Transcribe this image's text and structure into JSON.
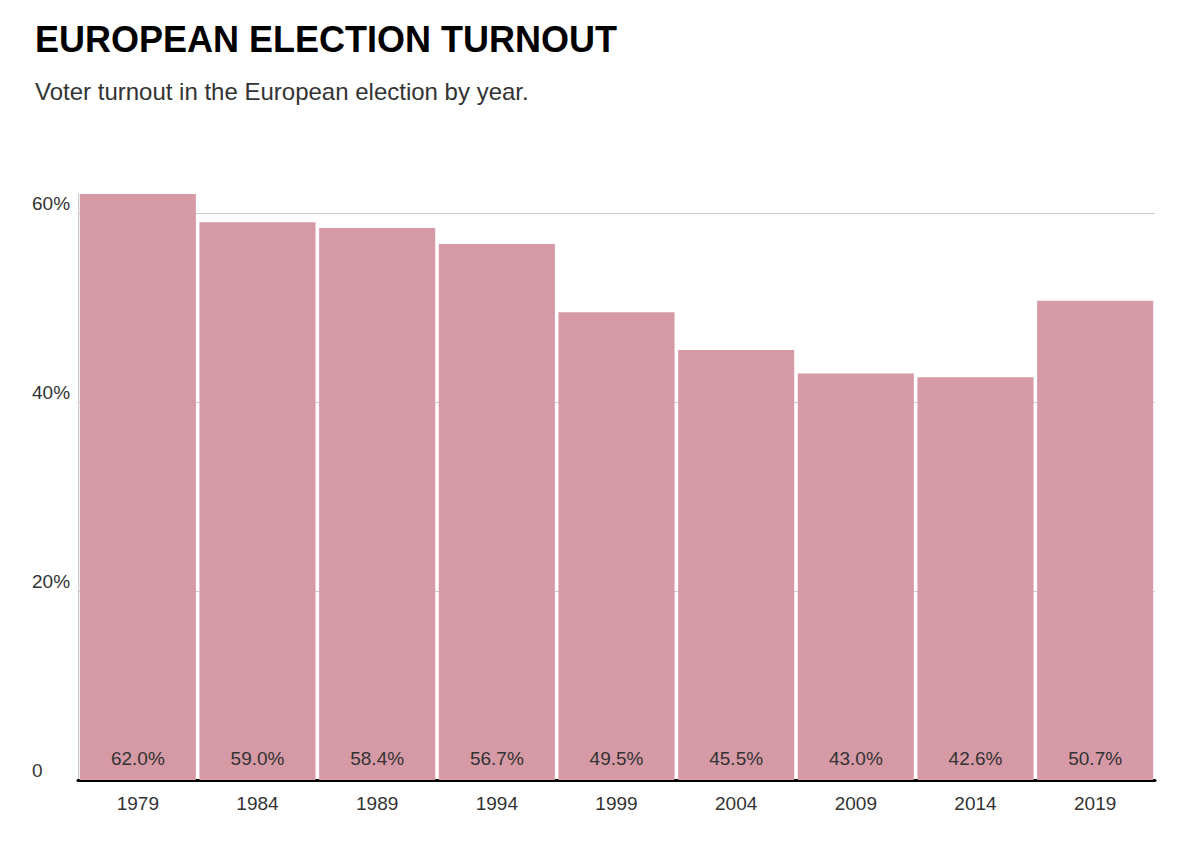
{
  "chart_data": {
    "type": "bar",
    "title": "EUROPEAN ELECTION TURNOUT",
    "subtitle": "Voter turnout in the European election by year.",
    "categories": [
      "1979",
      "1984",
      "1989",
      "1994",
      "1999",
      "2004",
      "2009",
      "2014",
      "2019"
    ],
    "values": [
      62.0,
      59.0,
      58.4,
      56.7,
      49.5,
      45.5,
      43.0,
      42.6,
      50.7
    ],
    "value_labels": [
      "62.0%",
      "59.0%",
      "58.4%",
      "56.7%",
      "49.5%",
      "45.5%",
      "43.0%",
      "42.6%",
      "50.7%"
    ],
    "color": "#d69aa6",
    "ylim": [
      0,
      62
    ],
    "yticks": [
      0,
      {
        "value": 20,
        "label": "20%"
      },
      {
        "value": 40,
        "label": "40%"
      },
      {
        "value": 60,
        "label": "60%"
      }
    ],
    "grid": true,
    "data_labels": true
  }
}
